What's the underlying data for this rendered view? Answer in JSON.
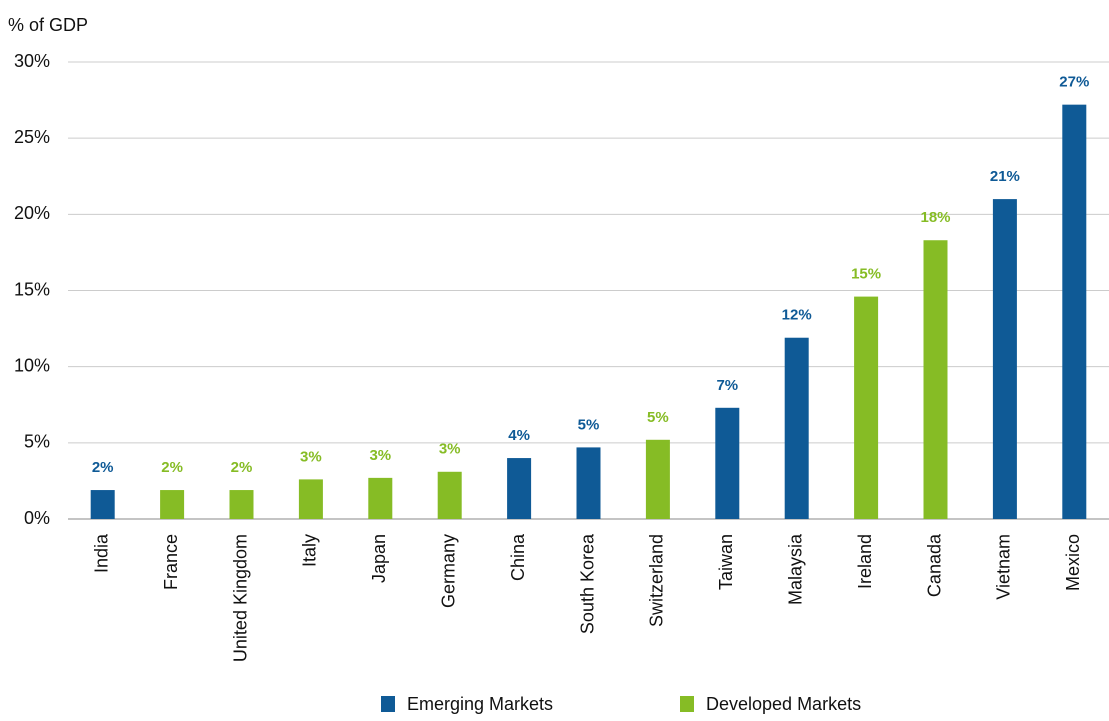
{
  "chart_data": {
    "type": "bar",
    "y_label": "% of GDP",
    "categories": [
      "India",
      "France",
      "United Kingdom",
      "Italy",
      "Japan",
      "Germany",
      "China",
      "South Korea",
      "Switzerland",
      "Taiwan",
      "Malaysia",
      "Ireland",
      "Canada",
      "Vietnam",
      "Mexico"
    ],
    "series": [
      {
        "name": "Emerging Markets",
        "color": "#0f5a96",
        "values": [
          1.9,
          null,
          null,
          null,
          null,
          null,
          4.0,
          4.7,
          null,
          7.3,
          11.9,
          null,
          null,
          21.0,
          27.2
        ],
        "value_labels": [
          "2%",
          null,
          null,
          null,
          null,
          null,
          "4%",
          "5%",
          null,
          "7%",
          "12%",
          null,
          null,
          "21%",
          "27%"
        ]
      },
      {
        "name": "Developed Markets",
        "color": "#86bc25",
        "values": [
          null,
          1.9,
          1.9,
          2.6,
          2.7,
          3.1,
          null,
          null,
          5.2,
          null,
          null,
          14.6,
          18.3,
          null,
          null
        ],
        "value_labels": [
          null,
          "2%",
          "2%",
          "3%",
          "3%",
          "3%",
          null,
          null,
          "5%",
          null,
          null,
          "15%",
          "18%",
          null,
          null
        ]
      }
    ],
    "ylim": [
      0,
      30
    ],
    "yticks": [
      {
        "value": 0,
        "label": "0%"
      },
      {
        "value": 5,
        "label": "5%"
      },
      {
        "value": 10,
        "label": "10%"
      },
      {
        "value": 15,
        "label": "15%"
      },
      {
        "value": 20,
        "label": "20%"
      },
      {
        "value": 25,
        "label": "25%"
      },
      {
        "value": 30,
        "label": "30%"
      }
    ],
    "grid": true
  }
}
